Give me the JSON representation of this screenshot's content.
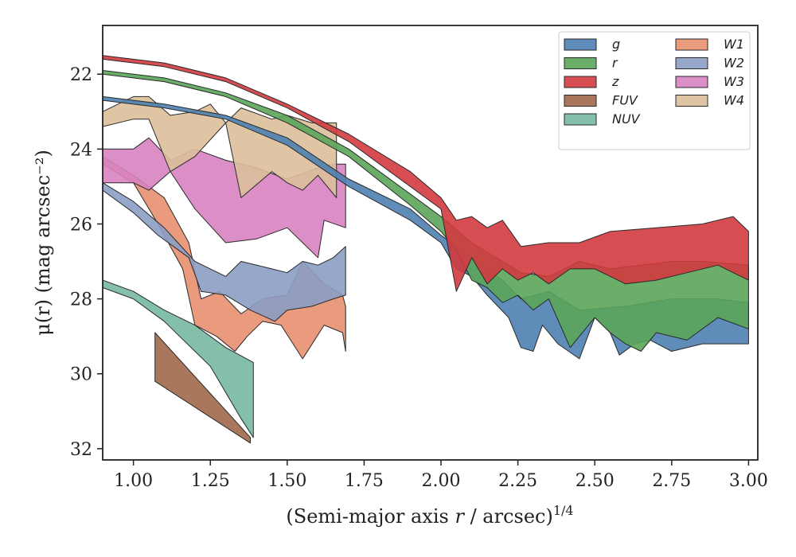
{
  "chart_data": {
    "type": "area",
    "xlabel": "(Semi-major axis r / arcsec)",
    "xlabel_italic_var": "r",
    "xlabel_sup": "1/4",
    "ylabel": "μ(r) (mag arcsec⁻²)",
    "xlim": [
      0.9,
      3.03
    ],
    "ylim": [
      32.3,
      20.7
    ],
    "y_inverted": true,
    "grid": false,
    "legend_position": "top-right",
    "legend_columns": 2,
    "xticks": [
      1.0,
      1.25,
      1.5,
      1.75,
      2.0,
      2.25,
      2.5,
      2.75,
      3.0
    ],
    "xtick_labels": [
      "1.00",
      "1.25",
      "1.50",
      "1.75",
      "2.00",
      "2.25",
      "2.50",
      "2.75",
      "3.00"
    ],
    "yticks": [
      22,
      24,
      26,
      28,
      30,
      32
    ],
    "ytick_labels": [
      "22",
      "24",
      "26",
      "28",
      "30",
      "32"
    ],
    "series": [
      {
        "name": "W1",
        "color": "#e8906f",
        "upper": [
          [
            0.9,
            24.2
          ],
          [
            1.0,
            24.7
          ],
          [
            1.1,
            25.3
          ],
          [
            1.18,
            26.5
          ],
          [
            1.22,
            28.0
          ],
          [
            1.28,
            27.8
          ],
          [
            1.35,
            28.4
          ],
          [
            1.42,
            28.0
          ],
          [
            1.5,
            27.9
          ],
          [
            1.55,
            27.0
          ],
          [
            1.62,
            27.6
          ],
          [
            1.68,
            27.9
          ],
          [
            1.69,
            28.2
          ]
        ],
        "lower": [
          [
            0.9,
            24.4
          ],
          [
            1.0,
            24.9
          ],
          [
            1.08,
            26.0
          ],
          [
            1.16,
            27.2
          ],
          [
            1.2,
            28.7
          ],
          [
            1.27,
            29.0
          ],
          [
            1.33,
            29.4
          ],
          [
            1.37,
            29.0
          ],
          [
            1.42,
            28.6
          ],
          [
            1.48,
            28.7
          ],
          [
            1.55,
            29.6
          ],
          [
            1.62,
            28.7
          ],
          [
            1.68,
            28.9
          ],
          [
            1.69,
            29.4
          ]
        ]
      },
      {
        "name": "W2",
        "color": "#8c9dc4",
        "upper": [
          [
            0.9,
            24.9
          ],
          [
            1.0,
            25.4
          ],
          [
            1.1,
            26.1
          ],
          [
            1.2,
            27.0
          ],
          [
            1.3,
            27.4
          ],
          [
            1.35,
            27.0
          ],
          [
            1.45,
            27.2
          ],
          [
            1.5,
            27.3
          ],
          [
            1.55,
            27.0
          ],
          [
            1.6,
            27.1
          ],
          [
            1.65,
            26.9
          ],
          [
            1.69,
            26.6
          ]
        ],
        "lower": [
          [
            0.9,
            25.1
          ],
          [
            1.0,
            25.7
          ],
          [
            1.08,
            26.3
          ],
          [
            1.18,
            26.9
          ],
          [
            1.22,
            27.8
          ],
          [
            1.3,
            27.9
          ],
          [
            1.38,
            28.3
          ],
          [
            1.46,
            28.6
          ],
          [
            1.5,
            28.3
          ],
          [
            1.58,
            28.2
          ],
          [
            1.65,
            28.0
          ],
          [
            1.69,
            27.9
          ]
        ]
      },
      {
        "name": "W3",
        "color": "#d783c0",
        "upper": [
          [
            0.9,
            24.0
          ],
          [
            1.0,
            24.0
          ],
          [
            1.05,
            23.7
          ],
          [
            1.12,
            24.3
          ],
          [
            1.2,
            24.0
          ],
          [
            1.3,
            24.3
          ],
          [
            1.4,
            24.5
          ],
          [
            1.5,
            24.8
          ],
          [
            1.6,
            24.5
          ],
          [
            1.65,
            24.4
          ],
          [
            1.69,
            24.4
          ]
        ],
        "lower": [
          [
            0.9,
            24.9
          ],
          [
            1.0,
            24.9
          ],
          [
            1.05,
            25.1
          ],
          [
            1.12,
            24.6
          ],
          [
            1.2,
            25.6
          ],
          [
            1.3,
            26.5
          ],
          [
            1.4,
            26.4
          ],
          [
            1.5,
            26.1
          ],
          [
            1.6,
            26.9
          ],
          [
            1.62,
            25.9
          ],
          [
            1.69,
            26.1
          ]
        ]
      },
      {
        "name": "W4",
        "color": "#dbbf9a",
        "upper": [
          [
            0.9,
            23.0
          ],
          [
            1.0,
            22.6
          ],
          [
            1.05,
            22.6
          ],
          [
            1.12,
            23.1
          ],
          [
            1.2,
            23.0
          ],
          [
            1.25,
            22.8
          ],
          [
            1.3,
            23.3
          ],
          [
            1.35,
            22.9
          ],
          [
            1.45,
            23.2
          ],
          [
            1.5,
            23.1
          ],
          [
            1.58,
            23.3
          ],
          [
            1.62,
            23.3
          ],
          [
            1.66,
            23.3
          ]
        ],
        "lower": [
          [
            0.9,
            23.4
          ],
          [
            1.0,
            23.2
          ],
          [
            1.05,
            23.2
          ],
          [
            1.12,
            24.6
          ],
          [
            1.2,
            24.2
          ],
          [
            1.3,
            23.3
          ],
          [
            1.35,
            25.3
          ],
          [
            1.45,
            24.6
          ],
          [
            1.5,
            24.9
          ],
          [
            1.55,
            25.1
          ],
          [
            1.6,
            24.7
          ],
          [
            1.66,
            25.3
          ]
        ]
      },
      {
        "name": "FUV",
        "color": "#a0694a",
        "upper": [
          [
            1.07,
            28.9
          ],
          [
            1.38,
            31.7
          ]
        ],
        "lower": [
          [
            1.07,
            30.2
          ],
          [
            1.38,
            31.85
          ]
        ]
      },
      {
        "name": "NUV",
        "color": "#76b8a0",
        "upper": [
          [
            0.9,
            27.5
          ],
          [
            1.0,
            27.8
          ],
          [
            1.1,
            28.3
          ],
          [
            1.2,
            28.7
          ],
          [
            1.3,
            29.3
          ],
          [
            1.39,
            29.7
          ]
        ],
        "lower": [
          [
            0.9,
            27.7
          ],
          [
            1.0,
            28.0
          ],
          [
            1.1,
            28.6
          ],
          [
            1.25,
            29.8
          ],
          [
            1.35,
            31.2
          ],
          [
            1.39,
            31.7
          ]
        ]
      },
      {
        "name": "g",
        "color": "#4e7fb0",
        "upper": [
          [
            0.9,
            22.6
          ],
          [
            1.1,
            22.8
          ],
          [
            1.3,
            23.1
          ],
          [
            1.5,
            23.7
          ],
          [
            1.7,
            24.8
          ],
          [
            1.9,
            25.6
          ],
          [
            2.0,
            26.3
          ],
          [
            2.1,
            26.9
          ],
          [
            2.2,
            27.5
          ],
          [
            2.26,
            28.0
          ],
          [
            2.35,
            27.8
          ],
          [
            2.45,
            28.3
          ],
          [
            2.6,
            28.2
          ],
          [
            2.75,
            28.0
          ],
          [
            2.9,
            28.0
          ],
          [
            3.0,
            28.1
          ]
        ],
        "lower": [
          [
            0.9,
            22.7
          ],
          [
            1.1,
            22.9
          ],
          [
            1.3,
            23.2
          ],
          [
            1.5,
            23.9
          ],
          [
            1.7,
            25.0
          ],
          [
            1.9,
            25.9
          ],
          [
            2.0,
            26.5
          ],
          [
            2.05,
            27.2
          ],
          [
            2.1,
            27.4
          ],
          [
            2.15,
            27.9
          ],
          [
            2.22,
            28.5
          ],
          [
            2.26,
            29.3
          ],
          [
            2.3,
            29.4
          ],
          [
            2.33,
            28.7
          ],
          [
            2.38,
            29.2
          ],
          [
            2.45,
            29.6
          ],
          [
            2.5,
            28.5
          ],
          [
            2.55,
            28.9
          ],
          [
            2.58,
            29.5
          ],
          [
            2.63,
            29.2
          ],
          [
            2.68,
            29.1
          ],
          [
            2.75,
            29.4
          ],
          [
            2.85,
            29.2
          ],
          [
            3.0,
            29.2
          ]
        ]
      },
      {
        "name": "r",
        "color": "#5aa55a",
        "upper": [
          [
            0.9,
            21.9
          ],
          [
            1.1,
            22.1
          ],
          [
            1.3,
            22.5
          ],
          [
            1.5,
            23.1
          ],
          [
            1.7,
            24.0
          ],
          [
            1.9,
            25.2
          ],
          [
            2.0,
            25.8
          ],
          [
            2.1,
            26.5
          ],
          [
            2.2,
            27.0
          ],
          [
            2.26,
            27.3
          ],
          [
            2.35,
            27.4
          ],
          [
            2.45,
            27.0
          ],
          [
            2.55,
            27.2
          ],
          [
            2.65,
            27.1
          ],
          [
            2.75,
            27.0
          ],
          [
            2.85,
            27.0
          ],
          [
            3.0,
            27.1
          ]
        ],
        "lower": [
          [
            0.9,
            22.0
          ],
          [
            1.1,
            22.2
          ],
          [
            1.3,
            22.6
          ],
          [
            1.5,
            23.3
          ],
          [
            1.7,
            24.2
          ],
          [
            1.9,
            25.5
          ],
          [
            2.0,
            26.2
          ],
          [
            2.05,
            26.7
          ],
          [
            2.1,
            27.5
          ],
          [
            2.15,
            27.7
          ],
          [
            2.2,
            28.1
          ],
          [
            2.25,
            27.9
          ],
          [
            2.3,
            28.3
          ],
          [
            2.35,
            28.0
          ],
          [
            2.42,
            29.3
          ],
          [
            2.5,
            28.5
          ],
          [
            2.55,
            28.9
          ],
          [
            2.6,
            29.2
          ],
          [
            2.65,
            29.4
          ],
          [
            2.7,
            28.9
          ],
          [
            2.8,
            29.1
          ],
          [
            2.9,
            28.5
          ],
          [
            3.0,
            28.8
          ]
        ]
      },
      {
        "name": "z",
        "color": "#d13a3f",
        "upper": [
          [
            0.9,
            21.5
          ],
          [
            1.1,
            21.7
          ],
          [
            1.3,
            22.1
          ],
          [
            1.5,
            22.8
          ],
          [
            1.7,
            23.6
          ],
          [
            1.9,
            24.6
          ],
          [
            2.0,
            25.3
          ],
          [
            2.05,
            25.9
          ],
          [
            2.1,
            25.8
          ],
          [
            2.15,
            26.1
          ],
          [
            2.2,
            25.9
          ],
          [
            2.26,
            26.6
          ],
          [
            2.35,
            26.5
          ],
          [
            2.45,
            26.5
          ],
          [
            2.55,
            26.2
          ],
          [
            2.7,
            26.1
          ],
          [
            2.85,
            26.0
          ],
          [
            2.95,
            25.8
          ],
          [
            3.0,
            26.2
          ]
        ],
        "lower": [
          [
            0.9,
            21.6
          ],
          [
            1.1,
            21.8
          ],
          [
            1.3,
            22.2
          ],
          [
            1.5,
            22.9
          ],
          [
            1.7,
            23.8
          ],
          [
            1.9,
            25.0
          ],
          [
            2.0,
            25.6
          ],
          [
            2.05,
            27.8
          ],
          [
            2.1,
            26.9
          ],
          [
            2.15,
            27.6
          ],
          [
            2.2,
            27.2
          ],
          [
            2.25,
            27.5
          ],
          [
            2.3,
            27.3
          ],
          [
            2.35,
            27.6
          ],
          [
            2.42,
            27.2
          ],
          [
            2.5,
            27.2
          ],
          [
            2.6,
            27.6
          ],
          [
            2.7,
            27.5
          ],
          [
            2.8,
            27.3
          ],
          [
            2.9,
            27.1
          ],
          [
            3.0,
            27.5
          ]
        ]
      }
    ],
    "legend": [
      {
        "name": "g",
        "color": "#4e7fb0"
      },
      {
        "name": "r",
        "color": "#5aa55a"
      },
      {
        "name": "z",
        "color": "#d13a3f"
      },
      {
        "name": "FUV",
        "color": "#a0694a"
      },
      {
        "name": "NUV",
        "color": "#76b8a0"
      },
      {
        "name": "W1",
        "color": "#e8906f"
      },
      {
        "name": "W2",
        "color": "#8c9dc4"
      },
      {
        "name": "W3",
        "color": "#d783c0"
      },
      {
        "name": "W4",
        "color": "#dbbf9a"
      }
    ]
  }
}
